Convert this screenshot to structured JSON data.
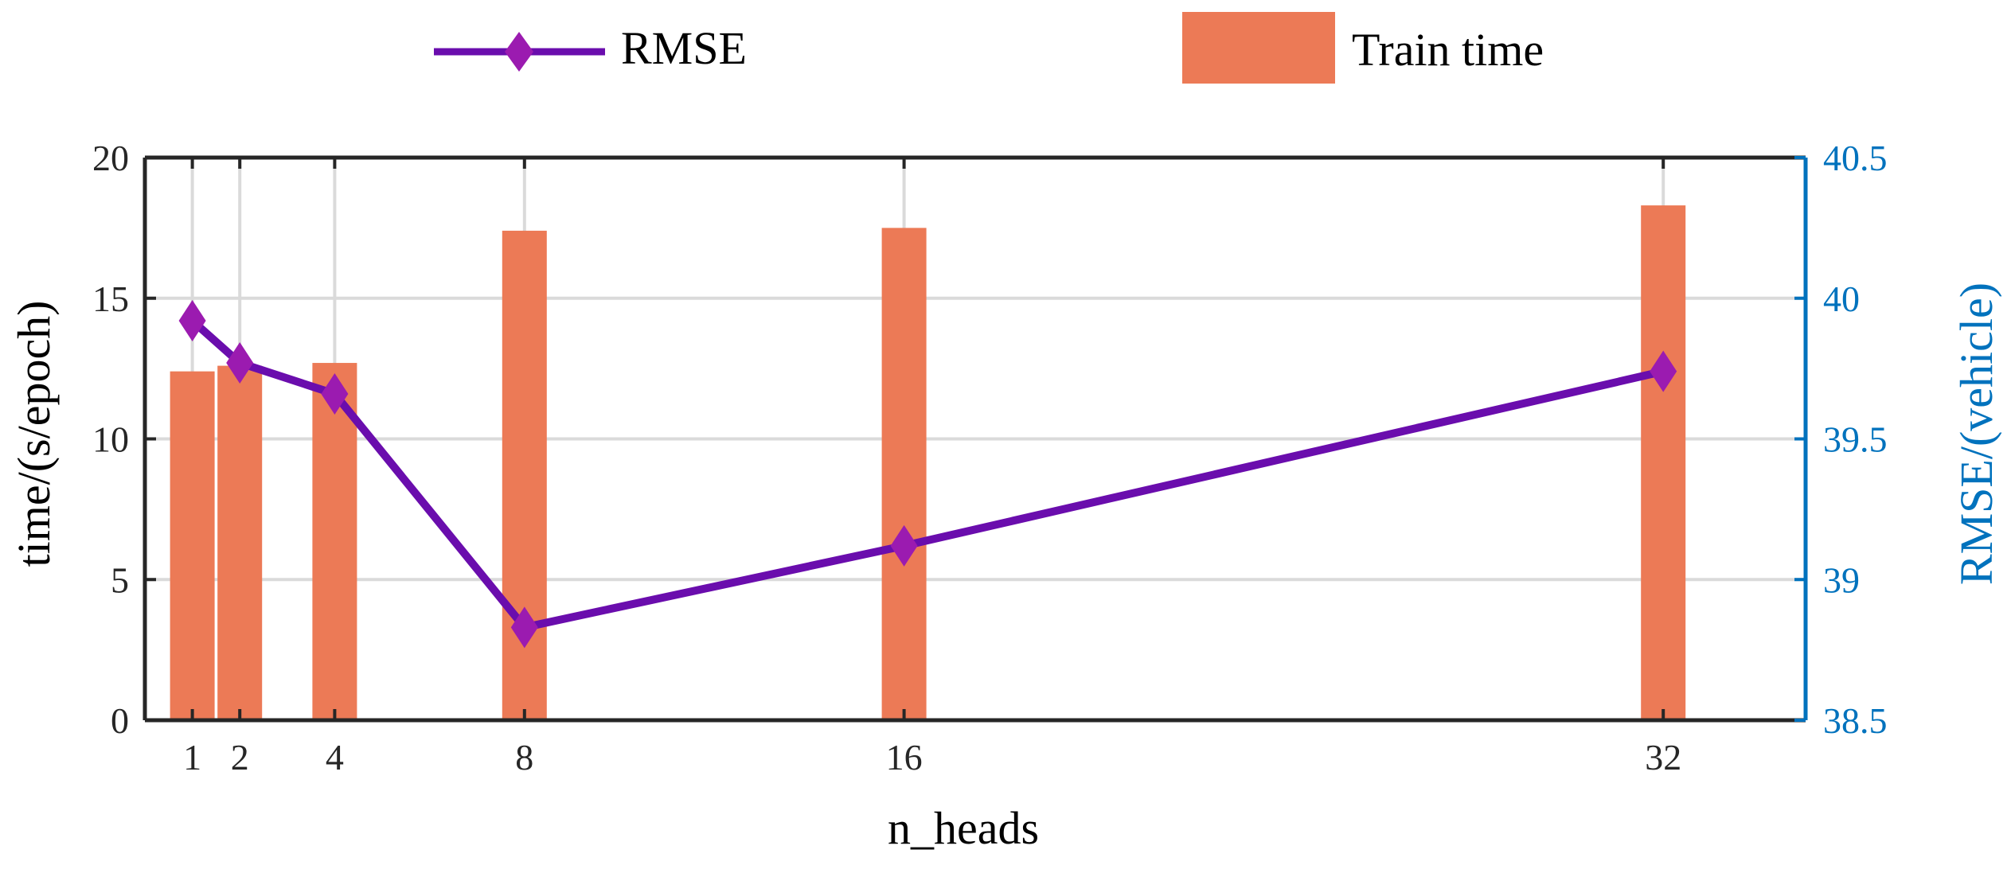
{
  "chart_data": {
    "type": "bar",
    "xlabel": "n_heads",
    "ylabel_left": "time/(s/epoch)",
    "ylabel_right": "RMSE/(vehicle)",
    "x": [
      1,
      2,
      4,
      8,
      16,
      32
    ],
    "x_tick_labels": [
      "1",
      "2",
      "4",
      "8",
      "16",
      "32"
    ],
    "xlim": [
      0,
      35
    ],
    "ylim_left": [
      0,
      20
    ],
    "ylim_right": [
      38.5,
      40.5
    ],
    "y_left_ticks": [
      "0",
      "5",
      "10",
      "15",
      "20"
    ],
    "y_right_ticks": [
      "38.5",
      "39",
      "39.5",
      "40",
      "40.5"
    ],
    "grid": true,
    "legend_position": "top",
    "series": [
      {
        "name": "Train time",
        "kind": "bar",
        "axis": "left",
        "color": "#EC7A56",
        "values": [
          12.4,
          12.6,
          12.7,
          17.4,
          17.5,
          18.3
        ]
      },
      {
        "name": "RMSE",
        "kind": "line",
        "axis": "right",
        "color": "#6A0DAD",
        "marker_color": "#9B1BB0",
        "values": [
          39.92,
          39.77,
          39.66,
          38.83,
          39.12,
          39.74
        ]
      }
    ]
  }
}
